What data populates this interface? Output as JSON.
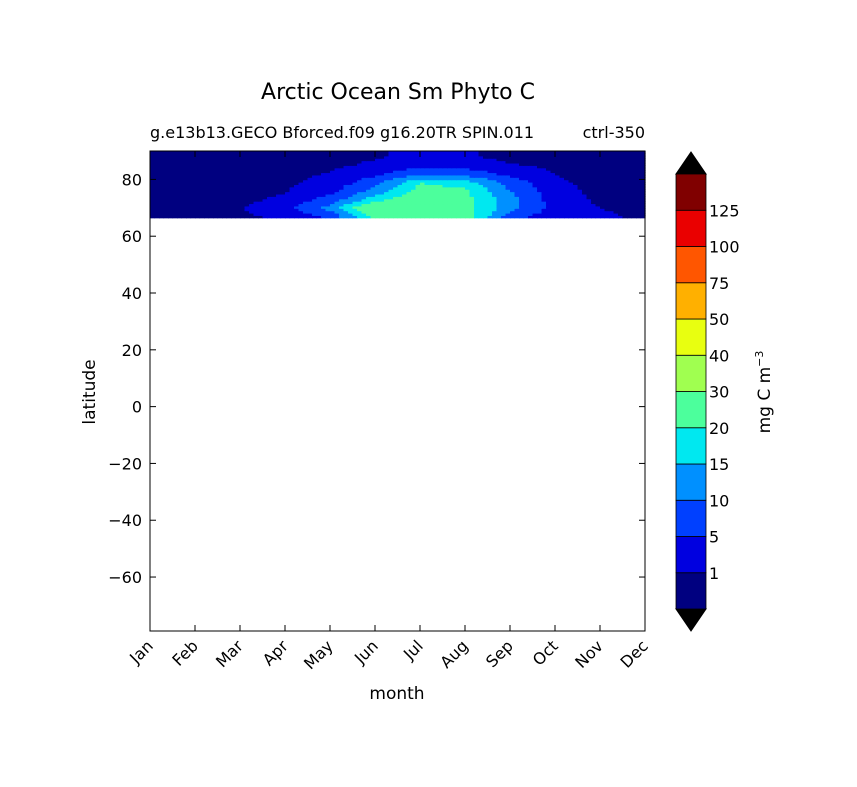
{
  "chart_data": {
    "type": "heatmap",
    "title": "Arctic Ocean Sm Phyto C",
    "subtitle_left": "g.e13b13.GECO Bforced.f09 g16.20TR SPIN.011",
    "subtitle_right": "ctrl-350",
    "xlabel": "month",
    "ylabel": "latitude",
    "x_ticks": [
      "Jan",
      "Feb",
      "Mar",
      "Apr",
      "May",
      "Jun",
      "Jul",
      "Aug",
      "Sep",
      "Oct",
      "Nov",
      "Dec"
    ],
    "y_ticks": [
      80,
      60,
      40,
      20,
      0,
      -20,
      -40,
      -60
    ],
    "ylim": [
      -79,
      90
    ],
    "xlim": [
      1,
      12
    ],
    "data_lat_range": [
      66.5,
      90
    ],
    "colorbar": {
      "label": "mg C m",
      "label_exponent": "−3",
      "levels": [
        0,
        1,
        5,
        10,
        15,
        20,
        30,
        40,
        50,
        75,
        100,
        125,
        150
      ],
      "tick_labels": [
        "1",
        "5",
        "10",
        "15",
        "20",
        "30",
        "40",
        "50",
        "75",
        "100",
        "125"
      ],
      "colors": [
        "#000080",
        "#0000e0",
        "#0040ff",
        "#0090ff",
        "#00e8f0",
        "#4cff9c",
        "#a0ff50",
        "#e8ff10",
        "#ffb000",
        "#ff5600",
        "#ea0000",
        "#800000"
      ],
      "extend": "both",
      "under_color": "#000000",
      "over_color": "#000000"
    },
    "field_rows": {
      "lats": [
        67,
        70,
        73,
        76,
        79,
        82,
        85,
        88
      ],
      "months": [
        1,
        2,
        3,
        4,
        5,
        6,
        7,
        8,
        9,
        10,
        11,
        12
      ],
      "values": [
        [
          0.5,
          0.5,
          0.5,
          1.5,
          6,
          22,
          28,
          24,
          7,
          2,
          1.5,
          0.5
        ],
        [
          0.3,
          0.3,
          0.8,
          3,
          12,
          28,
          25,
          22,
          12,
          3,
          1,
          0.3
        ],
        [
          0.3,
          0.3,
          0.4,
          1.5,
          7,
          18,
          25,
          22,
          12,
          2.5,
          0.5,
          0.3
        ],
        [
          0.2,
          0.2,
          0.3,
          0.8,
          3.5,
          12,
          22,
          21,
          10,
          2,
          0.3,
          0.2
        ],
        [
          0.2,
          0.2,
          0.2,
          0.4,
          2,
          8,
          20,
          18,
          8,
          1.5,
          0.2,
          0.2
        ],
        [
          0.1,
          0.1,
          0.1,
          0.2,
          1.2,
          4,
          9,
          8,
          4,
          1,
          0.1,
          0.1
        ],
        [
          0.1,
          0.1,
          0.1,
          0.1,
          0.5,
          1.5,
          4,
          3,
          1.2,
          0.4,
          0.1,
          0.1
        ],
        [
          0.1,
          0.1,
          0.1,
          0.1,
          0.2,
          0.8,
          1.5,
          1.2,
          0.5,
          0.2,
          0.1,
          0.1
        ]
      ]
    }
  }
}
